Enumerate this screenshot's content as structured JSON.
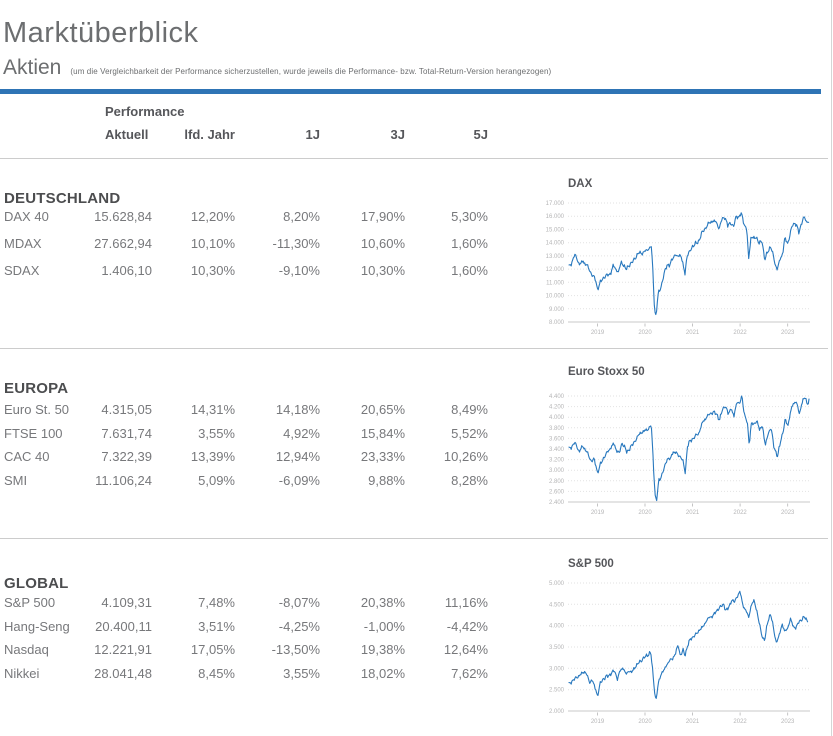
{
  "header": {
    "title": "Marktüberblick"
  },
  "subheader": {
    "title": "Aktien",
    "note": "(um die Vergleichbarkeit der Performance sicherzustellen, wurde jeweils die Performance- bzw. Total-Return-Version herangezogen)"
  },
  "colors": {
    "accent_blue": "#2e74b5",
    "chart_line": "#2878be"
  },
  "table": {
    "group_label": "Performance",
    "columns": [
      "Aktuell",
      "lfd. Jahr",
      "1J",
      "3J",
      "5J"
    ],
    "sections": [
      {
        "title": "DEUTSCHLAND",
        "rows": [
          {
            "name": "DAX 40",
            "values": [
              "15.628,84",
              "12,20%",
              "8,20%",
              "17,90%",
              "5,30%"
            ]
          },
          {
            "name": "MDAX",
            "values": [
              "27.662,94",
              "10,10%",
              "-11,30%",
              "10,60%",
              "1,60%"
            ]
          },
          {
            "name": "SDAX",
            "values": [
              "1.406,10",
              "10,30%",
              "-9,10%",
              "10,30%",
              "1,60%"
            ]
          }
        ]
      },
      {
        "title": "EUROPA",
        "rows": [
          {
            "name": "Euro St. 50",
            "values": [
              "4.315,05",
              "14,31%",
              "14,18%",
              "20,65%",
              "8,49%"
            ]
          },
          {
            "name": "FTSE 100",
            "values": [
              "7.631,74",
              "3,55%",
              "4,92%",
              "15,84%",
              "5,52%"
            ]
          },
          {
            "name": "CAC 40",
            "values": [
              "7.322,39",
              "13,39%",
              "12,94%",
              "23,33%",
              "10,26%"
            ]
          },
          {
            "name": "SMI",
            "values": [
              "11.106,24",
              "5,09%",
              "-6,09%",
              "9,88%",
              "8,28%"
            ]
          }
        ]
      },
      {
        "title": "GLOBAL",
        "rows": [
          {
            "name": "S&P 500",
            "values": [
              "4.109,31",
              "7,48%",
              "-8,07%",
              "20,38%",
              "11,16%"
            ]
          },
          {
            "name": "Hang-Seng",
            "values": [
              "20.400,11",
              "3,51%",
              "-4,25%",
              "-1,00%",
              "-4,42%"
            ]
          },
          {
            "name": "Nasdaq",
            "values": [
              "12.221,91",
              "17,05%",
              "-13,50%",
              "19,38%",
              "12,64%"
            ]
          },
          {
            "name": "Nikkei",
            "values": [
              "28.041,48",
              "8,45%",
              "3,55%",
              "18,02%",
              "7,62%"
            ]
          }
        ]
      }
    ]
  },
  "chart_data": [
    {
      "type": "line",
      "title": "DAX",
      "xlim": [
        2018.38,
        2023.47
      ],
      "ylim": [
        8000,
        17000
      ],
      "y_ticks": [
        8000,
        9000,
        10000,
        11000,
        12000,
        13000,
        14000,
        15000,
        16000,
        17000
      ],
      "x_ticks": [
        2019,
        2020,
        2021,
        2022,
        2023
      ],
      "grid": "dotted",
      "legend": "none",
      "series": [
        {
          "name": "DAX",
          "x": [
            2018.4,
            2018.46,
            2018.52,
            2018.58,
            2018.62,
            2018.7,
            2018.74,
            2018.78,
            2018.84,
            2018.9,
            2018.96,
            2019.0,
            2019.05,
            2019.1,
            2019.16,
            2019.22,
            2019.28,
            2019.33,
            2019.38,
            2019.44,
            2019.5,
            2019.56,
            2019.6,
            2019.66,
            2019.72,
            2019.8,
            2019.88,
            2019.95,
            2020.02,
            2020.08,
            2020.13,
            2020.16,
            2020.2,
            2020.23,
            2020.28,
            2020.34,
            2020.4,
            2020.46,
            2020.52,
            2020.58,
            2020.64,
            2020.68,
            2020.74,
            2020.78,
            2020.84,
            2020.88,
            2020.94,
            2021.0,
            2021.06,
            2021.12,
            2021.2,
            2021.28,
            2021.34,
            2021.42,
            2021.5,
            2021.56,
            2021.62,
            2021.68,
            2021.74,
            2021.8,
            2021.86,
            2021.92,
            2021.98,
            2022.03,
            2022.08,
            2022.14,
            2022.18,
            2022.23,
            2022.28,
            2022.34,
            2022.4,
            2022.46,
            2022.52,
            2022.58,
            2022.64,
            2022.7,
            2022.74,
            2022.78,
            2022.84,
            2022.9,
            2022.94,
            2023.0,
            2023.04,
            2023.1,
            2023.16,
            2023.2,
            2023.24,
            2023.28,
            2023.32,
            2023.36,
            2023.4,
            2023.44
          ],
          "values": [
            12150,
            12500,
            13100,
            12700,
            12350,
            12600,
            12400,
            12300,
            11850,
            11500,
            11200,
            10470,
            10900,
            11250,
            11450,
            11550,
            11700,
            12250,
            12050,
            11750,
            12550,
            12250,
            11950,
            12300,
            12450,
            12900,
            13250,
            13200,
            13400,
            13550,
            13740,
            12300,
            8930,
            8450,
            10200,
            10700,
            11600,
            12350,
            12250,
            12850,
            13100,
            12900,
            13150,
            12650,
            11600,
            13000,
            13300,
            13750,
            13900,
            14050,
            14750,
            15150,
            15450,
            15650,
            15550,
            15050,
            15800,
            15950,
            15250,
            15550,
            15150,
            16050,
            15900,
            16250,
            15450,
            14950,
            12830,
            14450,
            14300,
            14450,
            13900,
            14200,
            12650,
            13350,
            13700,
            13000,
            12350,
            11950,
            12750,
            13250,
            14350,
            13950,
            14450,
            15350,
            15500,
            15150,
            14750,
            15350,
            15750,
            15900,
            15550,
            15630
          ]
        }
      ]
    },
    {
      "type": "line",
      "title": "Euro Stoxx 50",
      "xlim": [
        2018.38,
        2023.47
      ],
      "ylim": [
        2400,
        4400
      ],
      "y_ticks": [
        2400,
        2600,
        2800,
        3000,
        3200,
        3400,
        3600,
        3800,
        4000,
        4200,
        4400
      ],
      "x_ticks": [
        2019,
        2020,
        2021,
        2022,
        2023
      ],
      "grid": "dotted",
      "legend": "none",
      "series": [
        {
          "name": "Euro Stoxx 50",
          "x": [
            2018.4,
            2018.46,
            2018.52,
            2018.58,
            2018.62,
            2018.68,
            2018.74,
            2018.8,
            2018.86,
            2018.92,
            2018.96,
            2019.0,
            2019.06,
            2019.12,
            2019.18,
            2019.24,
            2019.3,
            2019.34,
            2019.4,
            2019.46,
            2019.52,
            2019.58,
            2019.62,
            2019.68,
            2019.74,
            2019.82,
            2019.9,
            2019.96,
            2020.02,
            2020.08,
            2020.13,
            2020.16,
            2020.21,
            2020.24,
            2020.29,
            2020.35,
            2020.41,
            2020.47,
            2020.53,
            2020.59,
            2020.65,
            2020.7,
            2020.76,
            2020.8,
            2020.85,
            2020.89,
            2020.95,
            2021.01,
            2021.07,
            2021.13,
            2021.21,
            2021.29,
            2021.35,
            2021.43,
            2021.51,
            2021.57,
            2021.63,
            2021.69,
            2021.75,
            2021.81,
            2021.87,
            2021.93,
            2021.99,
            2022.04,
            2022.09,
            2022.15,
            2022.19,
            2022.24,
            2022.29,
            2022.35,
            2022.41,
            2022.47,
            2022.53,
            2022.59,
            2022.65,
            2022.71,
            2022.75,
            2022.79,
            2022.85,
            2022.91,
            2022.95,
            2023.01,
            2023.05,
            2023.11,
            2023.17,
            2023.21,
            2023.25,
            2023.29,
            2023.33,
            2023.37,
            2023.41,
            2023.45
          ],
          "values": [
            3395,
            3450,
            3520,
            3420,
            3350,
            3450,
            3400,
            3300,
            3180,
            3200,
            3120,
            2950,
            3100,
            3220,
            3300,
            3380,
            3450,
            3500,
            3380,
            3320,
            3520,
            3420,
            3330,
            3420,
            3480,
            3600,
            3700,
            3730,
            3750,
            3790,
            3860,
            3400,
            2550,
            2400,
            2800,
            2900,
            3050,
            3230,
            3200,
            3350,
            3330,
            3280,
            3250,
            3150,
            2950,
            3450,
            3550,
            3600,
            3650,
            3700,
            3900,
            4000,
            4050,
            4100,
            4050,
            3950,
            4150,
            4220,
            4050,
            4180,
            4000,
            4300,
            4250,
            4400,
            4050,
            3900,
            3500,
            3900,
            3850,
            3950,
            3750,
            3850,
            3450,
            3700,
            3800,
            3450,
            3350,
            3250,
            3550,
            3750,
            3950,
            3850,
            4050,
            4250,
            4300,
            4200,
            4050,
            4250,
            4320,
            4380,
            4250,
            4315
          ]
        }
      ]
    },
    {
      "type": "line",
      "title": "S&P 500",
      "xlim": [
        2018.38,
        2023.47
      ],
      "ylim": [
        2000,
        5000
      ],
      "y_ticks": [
        2000,
        2500,
        3000,
        3500,
        4000,
        4500,
        5000
      ],
      "x_ticks": [
        2019,
        2020,
        2021,
        2022,
        2023
      ],
      "grid": "dotted",
      "legend": "none",
      "series": [
        {
          "name": "S&P 500",
          "x": [
            2018.4,
            2018.46,
            2018.52,
            2018.58,
            2018.64,
            2018.7,
            2018.74,
            2018.8,
            2018.84,
            2018.88,
            2018.92,
            2018.97,
            2019.0,
            2019.06,
            2019.12,
            2019.18,
            2019.24,
            2019.3,
            2019.36,
            2019.42,
            2019.48,
            2019.54,
            2019.6,
            2019.66,
            2019.72,
            2019.8,
            2019.88,
            2019.96,
            2020.04,
            2020.12,
            2020.16,
            2020.2,
            2020.23,
            2020.28,
            2020.34,
            2020.4,
            2020.46,
            2020.52,
            2020.58,
            2020.64,
            2020.7,
            2020.74,
            2020.8,
            2020.84,
            2020.9,
            2020.96,
            2021.02,
            2021.08,
            2021.14,
            2021.22,
            2021.28,
            2021.34,
            2021.42,
            2021.48,
            2021.54,
            2021.6,
            2021.66,
            2021.7,
            2021.76,
            2021.82,
            2021.88,
            2021.94,
            2022.0,
            2022.06,
            2022.12,
            2022.18,
            2022.24,
            2022.3,
            2022.36,
            2022.42,
            2022.48,
            2022.52,
            2022.58,
            2022.64,
            2022.7,
            2022.76,
            2022.82,
            2022.88,
            2022.94,
            2023.0,
            2023.06,
            2023.12,
            2023.18,
            2023.24,
            2023.3,
            2023.36,
            2023.42
          ],
          "values": [
            2620,
            2700,
            2750,
            2800,
            2850,
            2900,
            2930,
            2780,
            2650,
            2760,
            2620,
            2480,
            2350,
            2650,
            2750,
            2800,
            2830,
            2900,
            2940,
            2750,
            2950,
            3020,
            2850,
            2950,
            2900,
            3050,
            3140,
            3230,
            3300,
            3380,
            2950,
            2480,
            2230,
            2650,
            2880,
            2950,
            3100,
            3180,
            3230,
            3350,
            3550,
            3300,
            3420,
            3300,
            3550,
            3690,
            3750,
            3800,
            3900,
            3970,
            4100,
            4180,
            4230,
            4300,
            4400,
            4450,
            4500,
            4350,
            4420,
            4600,
            4550,
            4700,
            4790,
            4480,
            4350,
            4200,
            4500,
            4580,
            4300,
            3950,
            3700,
            3670,
            4100,
            4280,
            3950,
            3600,
            3750,
            4050,
            3850,
            3950,
            4150,
            3980,
            3950,
            4100,
            4150,
            4200,
            4109
          ]
        }
      ]
    }
  ]
}
